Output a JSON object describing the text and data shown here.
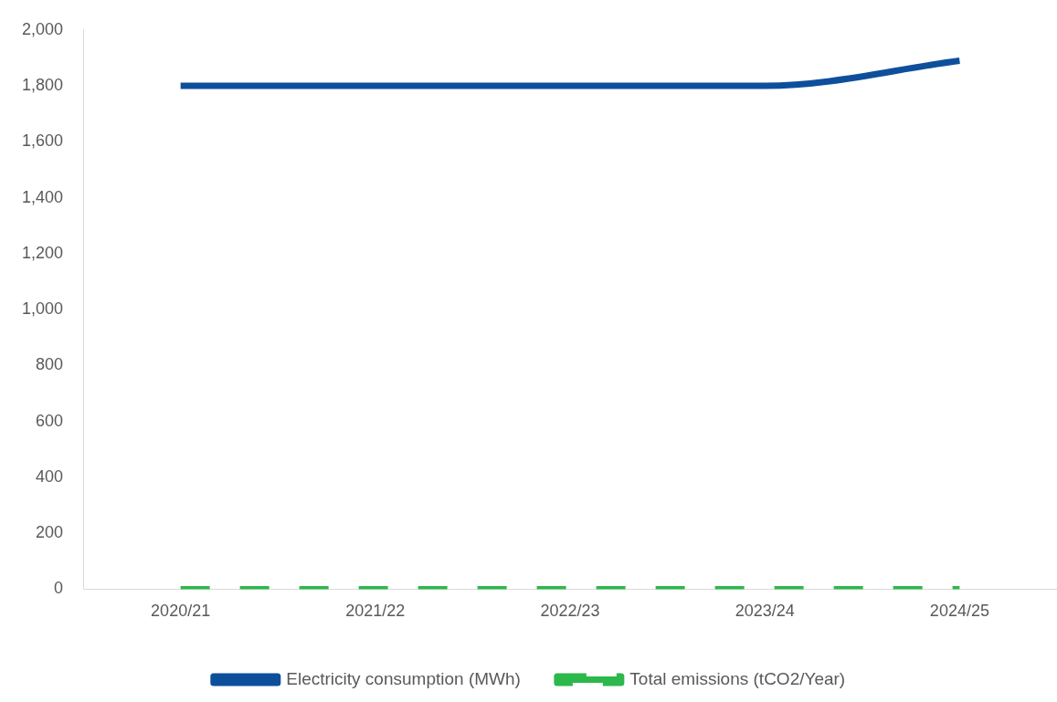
{
  "chart_data": {
    "type": "line",
    "categories": [
      "2020/21",
      "2021/22",
      "2022/23",
      "2023/24",
      "2024/25"
    ],
    "series": [
      {
        "name": "Electricity consumption (MWh)",
        "color": "#0e4f9c",
        "values": [
          1800,
          1800,
          1800,
          1800,
          1890
        ],
        "line_style": "solid"
      },
      {
        "name": "Total emissions (tCO2/Year)",
        "color": "#2db84b",
        "values": [
          0,
          0,
          0,
          0,
          0
        ],
        "line_style": "dashed"
      }
    ],
    "ylim": [
      0,
      2000
    ],
    "yticks": [
      0,
      200,
      400,
      600,
      800,
      {
        "value": 1000,
        "label": "1,000"
      },
      {
        "value": 1200,
        "label": "1,200"
      },
      {
        "value": 1400,
        "label": "1,400"
      },
      {
        "value": 1600,
        "label": "1,600"
      },
      {
        "value": 1800,
        "label": "1,800"
      },
      {
        "value": 2000,
        "label": "2,000"
      }
    ],
    "grid": false,
    "legend": "bottom",
    "marker": "none"
  }
}
